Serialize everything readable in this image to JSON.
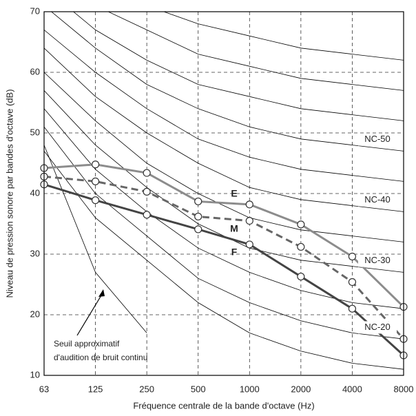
{
  "chart_data": {
    "type": "line",
    "x_label": "Fréquence centrale de la bande d'octave (Hz)",
    "y_label": "Niveau de pression sonore par bandes d'octave (dB)",
    "categories": [
      "63",
      "125",
      "250",
      "500",
      "1000",
      "2000",
      "4000",
      "8000"
    ],
    "ylim": [
      10,
      70
    ],
    "yticks": [
      10,
      20,
      30,
      40,
      50,
      60,
      70
    ],
    "grid": true,
    "series": [
      {
        "name": "E",
        "color": "#8c8c8c",
        "dashed": false,
        "values": [
          44.2,
          44.8,
          43.4,
          38.7,
          38.2,
          34.9,
          29.6,
          21.3
        ]
      },
      {
        "name": "M",
        "color": "#666666",
        "dashed": true,
        "values": [
          42.8,
          42.0,
          40.3,
          36.2,
          35.5,
          31.2,
          25.4,
          16.0
        ]
      },
      {
        "name": "F",
        "color": "#444444",
        "dashed": false,
        "values": [
          41.5,
          38.9,
          36.5,
          34.1,
          31.6,
          26.3,
          21.0,
          13.3
        ]
      }
    ],
    "nc_curves": [
      {
        "values": [
          47,
          36,
          29,
          22,
          17,
          14,
          12,
          11
        ]
      },
      {
        "name": "NC-20",
        "values": [
          51,
          40,
          33,
          26,
          22,
          19,
          17,
          16
        ]
      },
      {
        "values": [
          54,
          44,
          37,
          31,
          27,
          24,
          22,
          21
        ]
      },
      {
        "name": "NC-30",
        "values": [
          57,
          48,
          41,
          35,
          31,
          29,
          28,
          27
        ]
      },
      {
        "values": [
          60,
          52,
          45,
          40,
          36,
          34,
          33,
          32
        ]
      },
      {
        "name": "NC-40",
        "values": [
          64,
          56,
          50,
          45,
          41,
          39,
          38,
          37
        ]
      },
      {
        "values": [
          67,
          60,
          54,
          49,
          46,
          44,
          43,
          42
        ]
      },
      {
        "name": "NC-50",
        "values": [
          71,
          64,
          58,
          54,
          51,
          49,
          48,
          47
        ]
      },
      {
        "values": [
          74,
          67,
          62,
          58,
          56,
          54,
          53,
          52
        ]
      },
      {
        "values": [
          77,
          71,
          67,
          63,
          61,
          59,
          58,
          57
        ]
      },
      {
        "values": [
          80,
          75,
          71,
          68,
          66,
          64,
          63,
          62
        ]
      }
    ],
    "threshold": {
      "values": [
        48,
        27,
        17,
        null,
        null,
        null,
        null,
        null
      ],
      "label_lines": [
        "Seuil approximatif",
        "d'audition de bruit continu"
      ]
    }
  }
}
